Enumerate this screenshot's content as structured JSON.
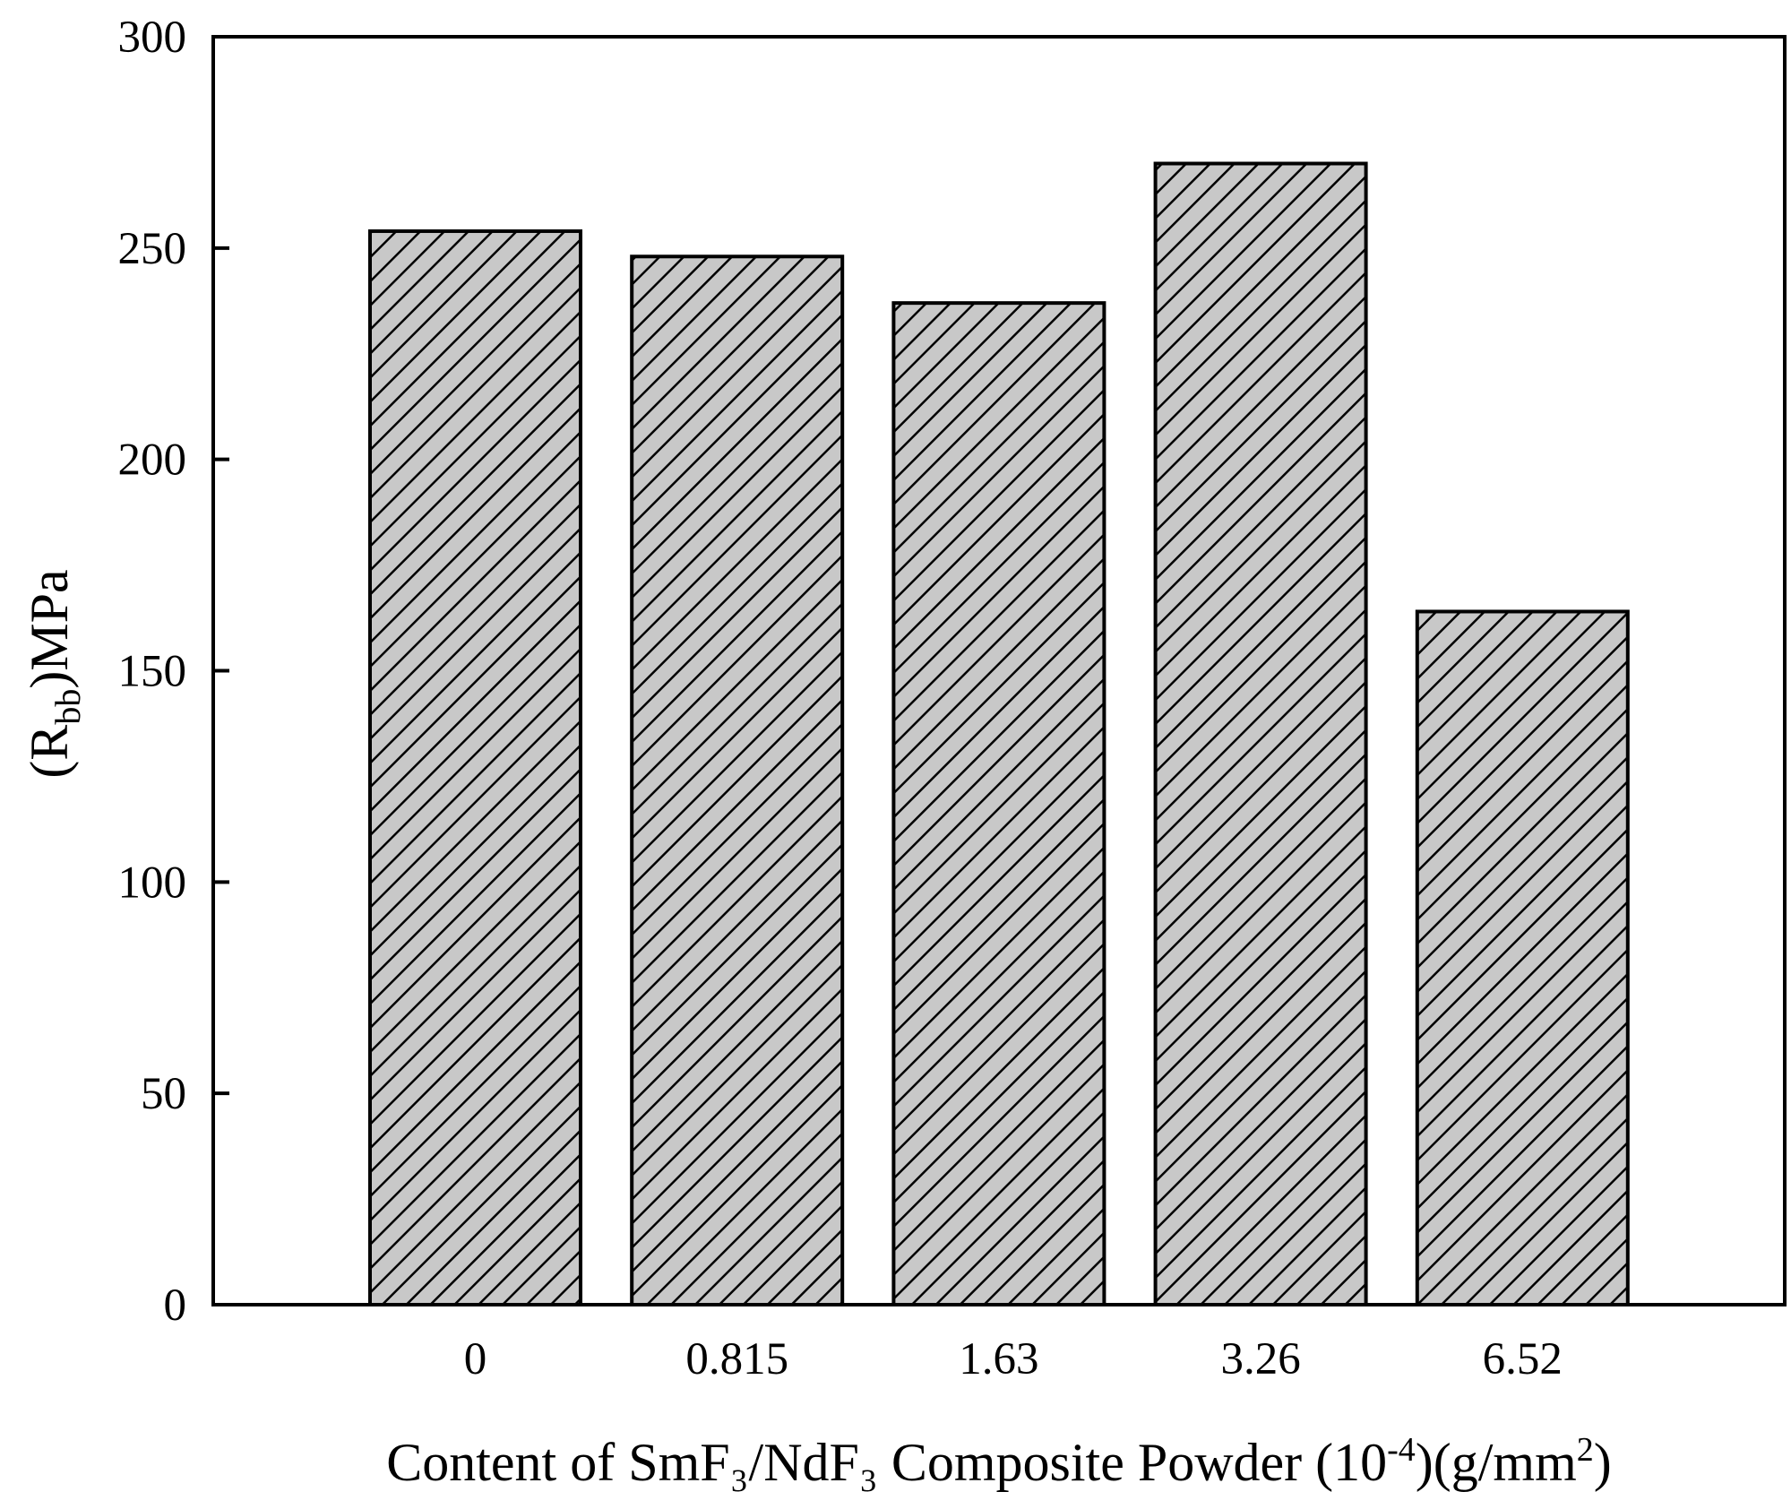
{
  "chart_data": {
    "type": "bar",
    "categories": [
      "0",
      "0.815",
      "1.63",
      "3.26",
      "6.52"
    ],
    "values": [
      254,
      248,
      237,
      270,
      164
    ],
    "title": "",
    "xlabel": "Content of  SmF₃/NdF₃ Composite Powder (10",
    "xlabel_sup": "-4",
    "xlabel_mid": ")(g/mm",
    "xlabel_sup2": "2",
    "xlabel_end": ")",
    "ylabel_pre": "(R",
    "ylabel_sub": "bb",
    "ylabel_post": ")MPa",
    "ylim": [
      0,
      300
    ],
    "yticks": [
      0,
      50,
      100,
      150,
      200,
      250,
      300
    ],
    "grid": false,
    "bar_fill": "#c8c8c8",
    "hatch": "diagonal"
  }
}
